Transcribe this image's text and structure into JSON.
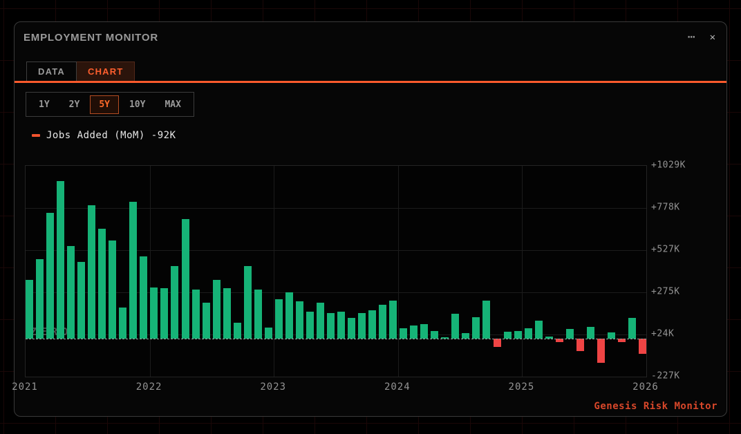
{
  "window": {
    "title": "EMPLOYMENT MONITOR",
    "menu_icon": "⋯",
    "close_icon": "✕"
  },
  "tabs": [
    {
      "label": "DATA",
      "active": false
    },
    {
      "label": "CHART",
      "active": true
    }
  ],
  "ranges": [
    {
      "label": "1Y",
      "active": false
    },
    {
      "label": "2Y",
      "active": false
    },
    {
      "label": "5Y",
      "active": true
    },
    {
      "label": "10Y",
      "active": false
    },
    {
      "label": "MAX",
      "active": false
    }
  ],
  "legend": {
    "series_label": "Jobs Added (MoM)",
    "latest_value": "-92K",
    "swatch_color": "#f0532e"
  },
  "footer": {
    "brand": "Genesis Risk Monitor"
  },
  "colors": {
    "accent_orange": "#ff5a2c",
    "positive_green": "#16b377",
    "negative_red": "#ef4444",
    "brand_red": "#d8472a",
    "panel_border": "#3a3a3a"
  },
  "chart_data": {
    "type": "bar",
    "title": "Jobs Added (MoM)",
    "unit": "K",
    "ylim": [
      -227,
      1029
    ],
    "y_tick_labels": [
      "+1029K",
      "+778K",
      "+527K",
      "+275K",
      "+24K",
      "-227K"
    ],
    "y_tick_values": [
      1029,
      778,
      527,
      275,
      24,
      -227
    ],
    "x_tick_labels": [
      "2021",
      "2022",
      "2023",
      "2024",
      "2025",
      "2026"
    ],
    "zero_line_label": "ZERO",
    "grid": true,
    "legend_position": "top-left",
    "months": [
      "2021-01",
      "2021-02",
      "2021-03",
      "2021-04",
      "2021-05",
      "2021-06",
      "2021-07",
      "2021-08",
      "2021-09",
      "2021-10",
      "2021-11",
      "2021-12",
      "2022-01",
      "2022-02",
      "2022-03",
      "2022-04",
      "2022-05",
      "2022-06",
      "2022-07",
      "2022-08",
      "2022-09",
      "2022-10",
      "2022-11",
      "2022-12",
      "2023-01",
      "2023-02",
      "2023-03",
      "2023-04",
      "2023-05",
      "2023-06",
      "2023-07",
      "2023-08",
      "2023-09",
      "2023-10",
      "2023-11",
      "2023-12",
      "2024-01",
      "2024-02",
      "2024-03",
      "2024-04",
      "2024-05",
      "2024-06",
      "2024-07",
      "2024-08",
      "2024-09",
      "2024-10",
      "2024-11",
      "2024-12",
      "2025-01",
      "2025-02",
      "2025-03",
      "2025-04",
      "2025-05",
      "2025-06",
      "2025-07",
      "2025-08",
      "2025-09",
      "2025-10",
      "2025-11",
      "2025-12"
    ],
    "values": [
      350,
      475,
      750,
      940,
      550,
      455,
      795,
      655,
      585,
      185,
      815,
      490,
      305,
      300,
      430,
      710,
      290,
      215,
      350,
      300,
      95,
      430,
      290,
      65,
      235,
      275,
      220,
      160,
      215,
      150,
      160,
      125,
      150,
      170,
      200,
      225,
      60,
      77,
      85,
      46,
      8,
      149,
      33,
      129,
      228,
      -49,
      42,
      44,
      63,
      108,
      12,
      -22,
      56,
      -74,
      71,
      -143,
      36,
      -20,
      122,
      -92
    ]
  }
}
